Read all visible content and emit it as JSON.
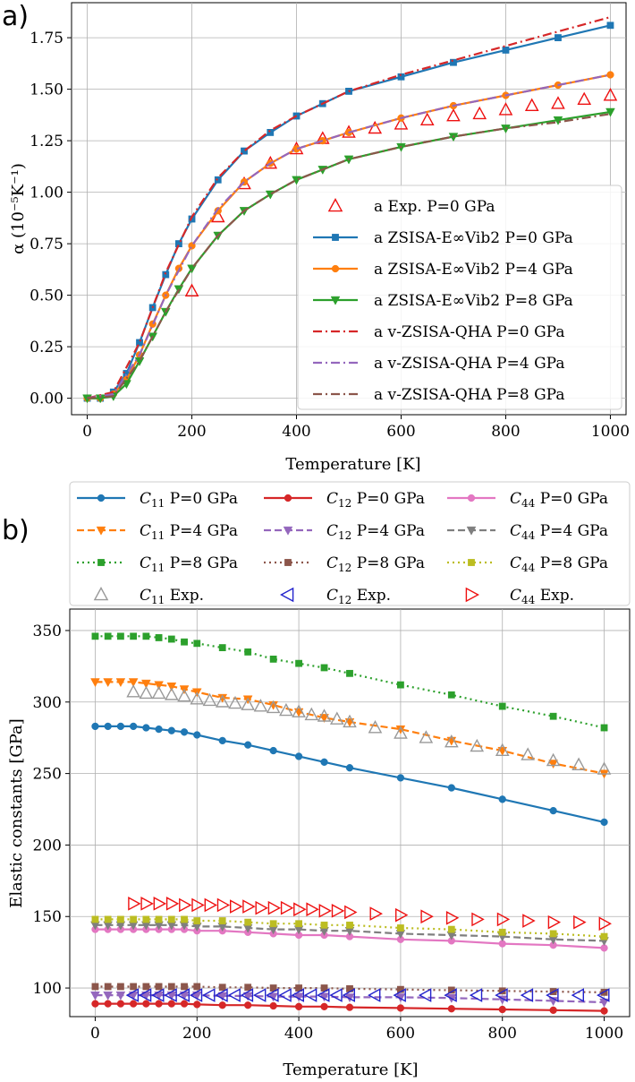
{
  "colors": {
    "blue": "#1f77b4",
    "orange": "#ff7f0e",
    "green": "#2ca02c",
    "red": "#d62728",
    "purple": "#9467bd",
    "brown": "#8c564b",
    "pink": "#e377c2",
    "gray": "#7f7f7f",
    "olive": "#bcbd22",
    "expGray": "#999999",
    "expBlue": "#2222cc",
    "expRed": "#ee1111"
  },
  "chart_data": [
    {
      "panel": "a)",
      "type": "line",
      "xlabel": "Temperature [K]",
      "ylabel": "α (10⁻⁵K⁻¹)",
      "xlim": [
        -30,
        1030
      ],
      "ylim": [
        -0.08,
        1.92
      ],
      "xticks": [
        0,
        200,
        400,
        600,
        800,
        1000
      ],
      "yticks": [
        0.0,
        0.25,
        0.5,
        0.75,
        1.0,
        1.25,
        1.5,
        1.75
      ],
      "ytick_labels": [
        "0.00",
        "0.25",
        "0.50",
        "0.75",
        "1.00",
        "1.25",
        "1.50",
        "1.75"
      ],
      "grid": true,
      "legend_position": "lower-right",
      "series": [
        {
          "key": "exp0",
          "name": "a Exp.  P=0 GPa",
          "kind": "exp",
          "marker": "tri_up",
          "color": "expRed",
          "x": [
            200,
            250,
            300,
            350,
            400,
            450,
            500,
            550,
            600,
            650,
            700,
            750,
            800,
            850,
            900,
            950,
            1000
          ],
          "y": [
            0.52,
            0.88,
            1.04,
            1.14,
            1.21,
            1.26,
            1.29,
            1.31,
            1.33,
            1.35,
            1.37,
            1.38,
            1.4,
            1.42,
            1.43,
            1.45,
            1.47
          ]
        },
        {
          "key": "zs0",
          "name": "a ZSISA-E∞Vib2 P=0 GPa",
          "kind": "model",
          "style": "solid",
          "marker": "square",
          "color": "blue",
          "x": [
            0,
            25,
            50,
            75,
            100,
            125,
            150,
            175,
            200,
            250,
            300,
            350,
            400,
            450,
            500,
            600,
            700,
            800,
            900,
            1000
          ],
          "y": [
            0.0,
            0.0,
            0.03,
            0.12,
            0.27,
            0.44,
            0.6,
            0.75,
            0.87,
            1.06,
            1.2,
            1.29,
            1.37,
            1.43,
            1.49,
            1.56,
            1.63,
            1.69,
            1.75,
            1.81
          ]
        },
        {
          "key": "zs4",
          "name": "a ZSISA-E∞Vib2 P=4 GPa",
          "kind": "model",
          "style": "solid",
          "marker": "circle",
          "color": "orange",
          "x": [
            0,
            25,
            50,
            75,
            100,
            125,
            150,
            175,
            200,
            250,
            300,
            350,
            400,
            450,
            500,
            600,
            700,
            800,
            900,
            1000
          ],
          "y": [
            0.0,
            0.0,
            0.02,
            0.09,
            0.21,
            0.36,
            0.5,
            0.63,
            0.74,
            0.91,
            1.05,
            1.14,
            1.21,
            1.25,
            1.29,
            1.36,
            1.42,
            1.47,
            1.52,
            1.57
          ]
        },
        {
          "key": "zs8",
          "name": "a ZSISA-E∞Vib2 P=8 GPa",
          "kind": "model",
          "style": "solid",
          "marker": "tri_down",
          "color": "green",
          "x": [
            0,
            25,
            50,
            75,
            100,
            125,
            150,
            175,
            200,
            250,
            300,
            350,
            400,
            450,
            500,
            600,
            700,
            800,
            900,
            1000
          ],
          "y": [
            0.0,
            0.0,
            0.01,
            0.07,
            0.18,
            0.3,
            0.42,
            0.53,
            0.63,
            0.79,
            0.91,
            0.99,
            1.06,
            1.11,
            1.16,
            1.22,
            1.27,
            1.31,
            1.35,
            1.39
          ]
        },
        {
          "key": "qha0",
          "name": "a v-ZSISA-QHA P=0 GPa",
          "kind": "model",
          "style": "dashdot",
          "marker": "none",
          "color": "red",
          "x": [
            0,
            50,
            100,
            150,
            200,
            250,
            300,
            350,
            400,
            500,
            600,
            700,
            800,
            900,
            1000
          ],
          "y": [
            0.0,
            0.03,
            0.27,
            0.61,
            0.88,
            1.07,
            1.2,
            1.3,
            1.37,
            1.49,
            1.57,
            1.64,
            1.71,
            1.78,
            1.85
          ]
        },
        {
          "key": "qha4",
          "name": "a v-ZSISA-QHA P=4 GPa",
          "kind": "model",
          "style": "dashdot",
          "marker": "none",
          "color": "purple",
          "x": [
            0,
            50,
            100,
            150,
            200,
            250,
            300,
            350,
            400,
            500,
            600,
            700,
            800,
            900,
            1000
          ],
          "y": [
            0.0,
            0.02,
            0.21,
            0.5,
            0.74,
            0.92,
            1.05,
            1.14,
            1.21,
            1.29,
            1.36,
            1.42,
            1.47,
            1.52,
            1.57
          ]
        },
        {
          "key": "qha8",
          "name": "a v-ZSISA-QHA P=8 GPa",
          "kind": "model",
          "style": "dashdot",
          "marker": "none",
          "color": "brown",
          "x": [
            0,
            50,
            100,
            150,
            200,
            250,
            300,
            350,
            400,
            500,
            600,
            700,
            800,
            900,
            1000
          ],
          "y": [
            0.0,
            0.01,
            0.18,
            0.42,
            0.63,
            0.79,
            0.91,
            0.99,
            1.06,
            1.16,
            1.22,
            1.27,
            1.31,
            1.34,
            1.38
          ]
        }
      ]
    },
    {
      "panel": "b)",
      "type": "line",
      "xlabel": "Temperature [K]",
      "ylabel": "Elastic constants [GPa]",
      "xlim": [
        -50,
        1050
      ],
      "ylim": [
        80,
        365
      ],
      "xticks": [
        0,
        200,
        400,
        600,
        800,
        1000
      ],
      "yticks": [
        100,
        150,
        200,
        250,
        300,
        350
      ],
      "grid": true,
      "legend_position": "top (above plot)",
      "series": [
        {
          "key": "c11_0",
          "sym": "C",
          "sub": "11",
          "suffix": " P=0 GPa",
          "kind": "model",
          "style": "solid",
          "marker": "circle",
          "color": "blue",
          "x": [
            0,
            25,
            50,
            75,
            100,
            125,
            150,
            175,
            200,
            250,
            300,
            350,
            400,
            450,
            500,
            600,
            700,
            800,
            900,
            1000
          ],
          "y": [
            283,
            283,
            283,
            283,
            282,
            281,
            280,
            279,
            277,
            273,
            270,
            266,
            262,
            258,
            254,
            247,
            240,
            232,
            224,
            216
          ]
        },
        {
          "key": "c11_4",
          "sym": "C",
          "sub": "11",
          "suffix": " P=4 GPa",
          "kind": "model",
          "style": "dashed",
          "marker": "tri_down",
          "color": "orange",
          "x": [
            0,
            25,
            50,
            75,
            100,
            125,
            150,
            175,
            200,
            250,
            300,
            350,
            400,
            450,
            500,
            600,
            700,
            800,
            900,
            1000
          ],
          "y": [
            314,
            314,
            314,
            314,
            313,
            312,
            311,
            309,
            307,
            303,
            302,
            298,
            293,
            289,
            286,
            281,
            273,
            266,
            257,
            250
          ]
        },
        {
          "key": "c11_8",
          "sym": "C",
          "sub": "11",
          "suffix": " P=8 GPa",
          "kind": "model",
          "style": "dotted",
          "marker": "square",
          "color": "green",
          "x": [
            0,
            25,
            50,
            75,
            100,
            125,
            150,
            175,
            200,
            250,
            300,
            350,
            400,
            450,
            500,
            600,
            700,
            800,
            900,
            1000
          ],
          "y": [
            346,
            346,
            346,
            346,
            346,
            345,
            344,
            342,
            341,
            338,
            335,
            330,
            327,
            324,
            320,
            312,
            305,
            297,
            290,
            282
          ]
        },
        {
          "key": "c11_exp",
          "sym": "C",
          "sub": "11",
          "suffix": " Exp.",
          "kind": "exp",
          "marker": "tri_up",
          "color": "expGray",
          "x": [
            75,
            100,
            125,
            150,
            175,
            200,
            225,
            250,
            275,
            300,
            325,
            350,
            375,
            400,
            425,
            450,
            475,
            500,
            550,
            600,
            650,
            700,
            750,
            800,
            850,
            900,
            950,
            1000
          ],
          "y": [
            307,
            306,
            306,
            305,
            304,
            302,
            301,
            300,
            299,
            298,
            297,
            296,
            294,
            293,
            291,
            290,
            288,
            286,
            282,
            278,
            275,
            272,
            269,
            266,
            263,
            259,
            256,
            253
          ]
        },
        {
          "key": "c12_0",
          "sym": "C",
          "sub": "12",
          "suffix": " P=0 GPa",
          "kind": "model",
          "style": "solid",
          "marker": "circle",
          "color": "red",
          "x": [
            0,
            25,
            50,
            75,
            100,
            125,
            150,
            175,
            200,
            250,
            300,
            350,
            400,
            450,
            500,
            600,
            700,
            800,
            900,
            1000
          ],
          "y": [
            89,
            89,
            89,
            89,
            89,
            89,
            89,
            89,
            88.5,
            88,
            88,
            87.5,
            87,
            87,
            86.5,
            86,
            85.5,
            85,
            84.5,
            84
          ]
        },
        {
          "key": "c12_4",
          "sym": "C",
          "sub": "12",
          "suffix": " P=4 GPa",
          "kind": "model",
          "style": "dashed",
          "marker": "tri_down",
          "color": "purple",
          "x": [
            0,
            25,
            50,
            75,
            100,
            125,
            150,
            175,
            200,
            250,
            300,
            350,
            400,
            450,
            500,
            600,
            700,
            800,
            900,
            1000
          ],
          "y": [
            95,
            95,
            95,
            95,
            95,
            95,
            95,
            95,
            95,
            94.5,
            94.5,
            94,
            94,
            94,
            93.5,
            93.5,
            93,
            92,
            91,
            90
          ]
        },
        {
          "key": "c12_8",
          "sym": "C",
          "sub": "12",
          "suffix": " P=8 GPa",
          "kind": "model",
          "style": "dotted",
          "marker": "square",
          "color": "brown",
          "x": [
            0,
            25,
            50,
            75,
            100,
            125,
            150,
            175,
            200,
            250,
            300,
            350,
            400,
            450,
            500,
            600,
            700,
            800,
            900,
            1000
          ],
          "y": [
            101,
            101,
            101,
            101,
            101,
            101,
            101,
            101,
            101,
            100.5,
            100.5,
            100,
            100,
            100,
            99.5,
            99,
            98.5,
            98,
            97.5,
            97
          ]
        },
        {
          "key": "c12_exp",
          "sym": "C",
          "sub": "12",
          "suffix": " Exp.",
          "kind": "exp",
          "marker": "tri_left",
          "color": "expBlue",
          "x": [
            75,
            100,
            125,
            150,
            175,
            200,
            225,
            250,
            275,
            300,
            325,
            350,
            375,
            400,
            425,
            450,
            475,
            500,
            550,
            600,
            650,
            700,
            750,
            800,
            850,
            900,
            950,
            1000
          ],
          "y": [
            95,
            95,
            95,
            95,
            95,
            95,
            95,
            95,
            95,
            95,
            95,
            95,
            95,
            95,
            95,
            95,
            95,
            95,
            95,
            95,
            95,
            95,
            95,
            95,
            95,
            95,
            95,
            95
          ]
        },
        {
          "key": "c44_0",
          "sym": "C",
          "sub": "44",
          "suffix": " P=0 GPa",
          "kind": "model",
          "style": "solid",
          "marker": "circle",
          "color": "pink",
          "x": [
            0,
            25,
            50,
            75,
            100,
            125,
            150,
            175,
            200,
            250,
            300,
            350,
            400,
            450,
            500,
            600,
            700,
            800,
            900,
            1000
          ],
          "y": [
            141,
            141,
            141,
            141,
            141,
            141,
            141,
            141,
            140,
            140,
            139,
            138,
            137,
            137,
            136,
            134,
            133,
            131,
            130,
            128
          ]
        },
        {
          "key": "c44_4",
          "sym": "C",
          "sub": "44",
          "suffix": " P=4 GPa",
          "kind": "model",
          "style": "dashed",
          "marker": "tri_down",
          "color": "gray",
          "x": [
            0,
            25,
            50,
            75,
            100,
            125,
            150,
            175,
            200,
            250,
            300,
            350,
            400,
            450,
            500,
            600,
            700,
            800,
            900,
            1000
          ],
          "y": [
            144,
            144,
            144,
            144,
            144,
            144,
            144,
            144,
            143,
            143,
            142,
            141,
            141,
            140,
            140,
            138,
            137,
            136,
            134,
            133
          ]
        },
        {
          "key": "c44_8",
          "sym": "C",
          "sub": "44",
          "suffix": " P=8 GPa",
          "kind": "model",
          "style": "dotted",
          "marker": "square",
          "color": "olive",
          "x": [
            0,
            25,
            50,
            75,
            100,
            125,
            150,
            175,
            200,
            250,
            300,
            350,
            400,
            450,
            500,
            600,
            700,
            800,
            900,
            1000
          ],
          "y": [
            148,
            148,
            148,
            148,
            148,
            148,
            148,
            148,
            147,
            147,
            146,
            145,
            145,
            144,
            144,
            142,
            141,
            139,
            138,
            136
          ]
        },
        {
          "key": "c44_exp",
          "sym": "C",
          "sub": "44",
          "suffix": " Exp.",
          "kind": "exp",
          "marker": "tri_right",
          "color": "expRed",
          "x": [
            75,
            100,
            125,
            150,
            175,
            200,
            225,
            250,
            275,
            300,
            325,
            350,
            375,
            400,
            425,
            450,
            475,
            500,
            550,
            600,
            650,
            700,
            750,
            800,
            850,
            900,
            950,
            1000
          ],
          "y": [
            159,
            159,
            159,
            159,
            158,
            158,
            158,
            158,
            157,
            157,
            156,
            156,
            156,
            155,
            155,
            154,
            154,
            153,
            152,
            151,
            150,
            149,
            148,
            148,
            147,
            146,
            146,
            145
          ]
        }
      ]
    }
  ]
}
